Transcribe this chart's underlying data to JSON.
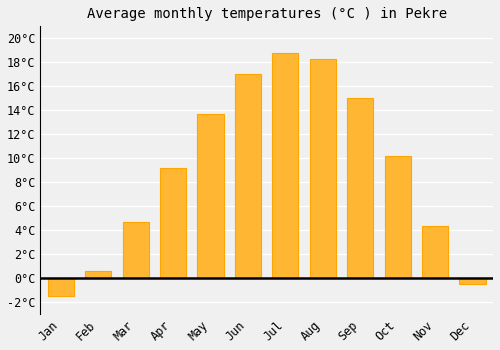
{
  "title": "Average monthly temperatures (°C ) in Pekre",
  "months": [
    "Jan",
    "Feb",
    "Mar",
    "Apr",
    "May",
    "Jun",
    "Jul",
    "Aug",
    "Sep",
    "Oct",
    "Nov",
    "Dec"
  ],
  "values": [
    -1.5,
    0.6,
    4.7,
    9.2,
    13.7,
    17.0,
    18.8,
    18.3,
    15.0,
    10.2,
    4.3,
    -0.5
  ],
  "bar_color": "#FFB733",
  "bar_edgecolor": "#FFA500",
  "ylim": [
    -3,
    21
  ],
  "yticks": [
    -2,
    0,
    2,
    4,
    6,
    8,
    10,
    12,
    14,
    16,
    18,
    20
  ],
  "ytick_labels": [
    "-2°C",
    "0°C",
    "2°C",
    "4°C",
    "6°C",
    "8°C",
    "10°C",
    "12°C",
    "14°C",
    "16°C",
    "18°C",
    "20°C"
  ],
  "background_color": "#f0f0f0",
  "grid_color": "#ffffff",
  "title_fontsize": 10,
  "tick_fontsize": 8.5,
  "bar_width": 0.7
}
